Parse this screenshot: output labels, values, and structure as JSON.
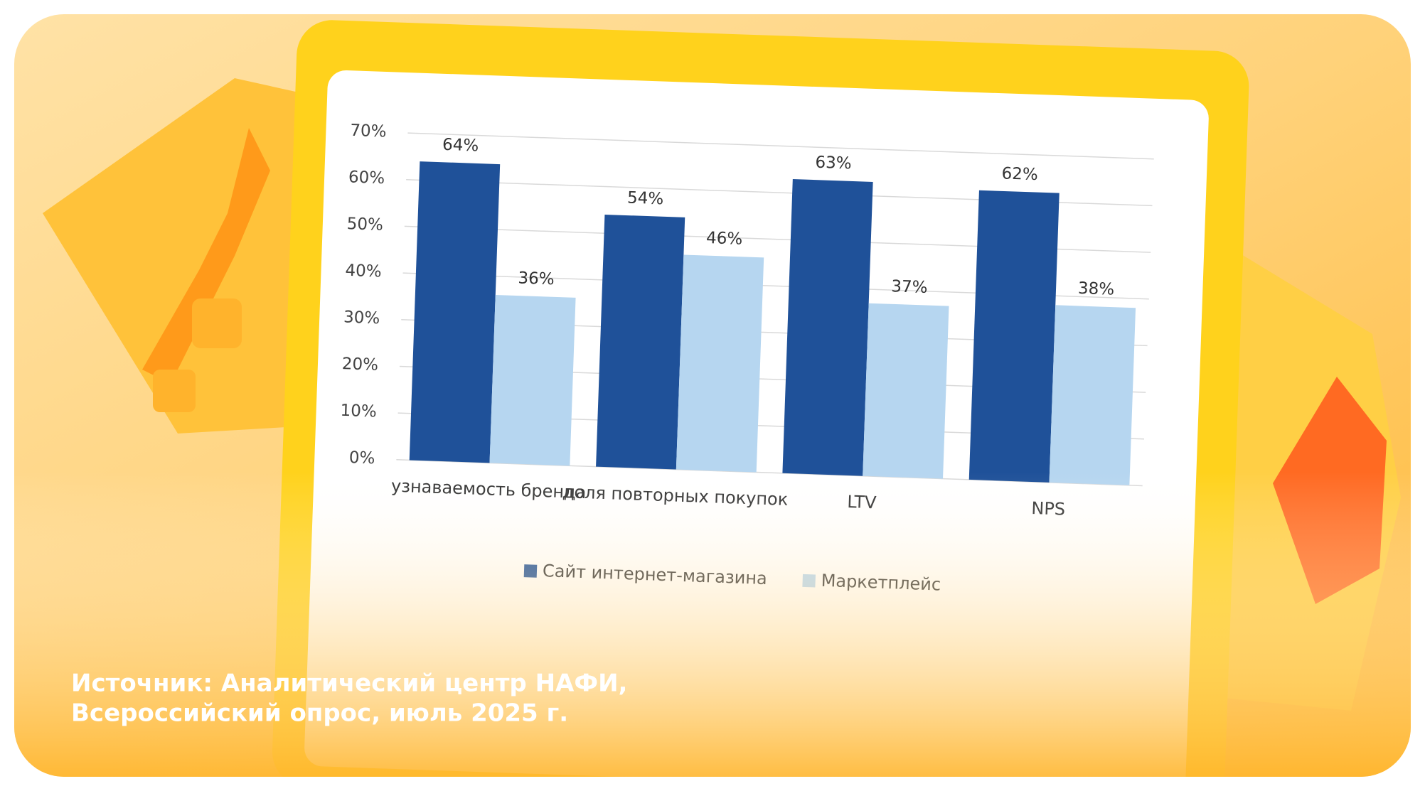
{
  "caption": {
    "lines": [
      "Источник: Аналитический центр НАФИ,",
      "Всероссийский опрос, июль 2025 г."
    ]
  },
  "chart_data": {
    "type": "bar",
    "categories": [
      "узнаваемость бренда",
      "доля повторных покупок",
      "LTV",
      "NPS"
    ],
    "series": [
      {
        "name": "Сайт интернет-магазина",
        "color": "#1f5199",
        "values": [
          64,
          54,
          63,
          62
        ],
        "value_labels": [
          "64%",
          "54%",
          "63%",
          "62%"
        ]
      },
      {
        "name": "Маркетплейс",
        "color": "#b6d6f0",
        "values": [
          36,
          46,
          37,
          38
        ],
        "value_labels": [
          "36%",
          "46%",
          "37%",
          "38%"
        ]
      }
    ],
    "ylim": [
      0,
      70
    ],
    "yticks": [
      {
        "value": 0,
        "label": "0%"
      },
      {
        "value": 10,
        "label": "10%"
      },
      {
        "value": 20,
        "label": "20%"
      },
      {
        "value": 30,
        "label": "30%"
      },
      {
        "value": 40,
        "label": "40%"
      },
      {
        "value": 50,
        "label": "50%"
      },
      {
        "value": 60,
        "label": "60%"
      },
      {
        "value": 70,
        "label": "70%"
      }
    ],
    "grid": true,
    "legend": "bottom"
  }
}
